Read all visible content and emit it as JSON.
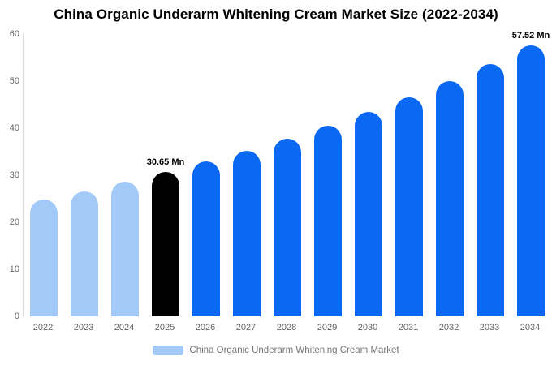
{
  "title": "China Organic Underarm Whitening Cream Market Size (2022-2034)",
  "chart_data": {
    "type": "bar",
    "title": "China Organic Underarm Whitening Cream Market Size (2022-2034)",
    "categories": [
      "2022",
      "2023",
      "2024",
      "2025",
      "2026",
      "2027",
      "2028",
      "2029",
      "2030",
      "2031",
      "2032",
      "2033",
      "2034"
    ],
    "values": [
      24.84,
      26.64,
      28.58,
      30.65,
      32.87,
      35.25,
      37.81,
      40.55,
      43.49,
      46.64,
      50.02,
      53.65,
      57.52
    ],
    "unit": "Mn",
    "bar_roles": [
      "historical",
      "historical",
      "historical",
      "base_year",
      "forecast",
      "forecast",
      "forecast",
      "forecast",
      "forecast",
      "forecast",
      "forecast",
      "forecast",
      "forecast"
    ],
    "palette": {
      "historical": "#a3c9f8",
      "base_year": "#000000",
      "forecast": "#0a68f2"
    },
    "xlabel": "",
    "ylabel": "",
    "ylim": [
      0,
      60
    ],
    "yticks": [
      0,
      10,
      20,
      30,
      40,
      50,
      60
    ],
    "grid": false,
    "legend_position": "bottom",
    "annotations": [
      {
        "category": "2025",
        "text": "30.65 Mn"
      },
      {
        "category": "2034",
        "text": "57.52 Mn"
      }
    ]
  },
  "legend": {
    "label": "China Organic Underarm Whitening Cream Market",
    "swatch_color": "#a3c9f8"
  },
  "colors": {
    "background": "#ffffff",
    "title_text": "#000000",
    "axis_text": "#666666",
    "legend_text": "#757575",
    "axis_line": "#d9d9d9"
  }
}
